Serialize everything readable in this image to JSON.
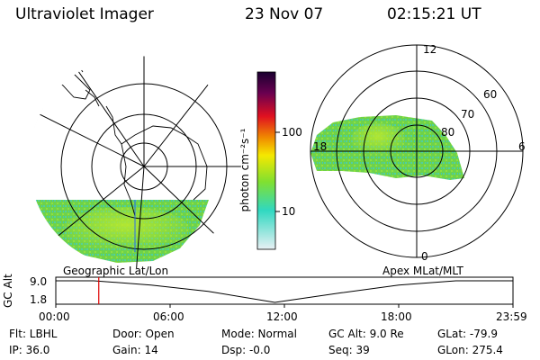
{
  "header": {
    "title": "Ultraviolet Imager",
    "date": "23 Nov 07",
    "time": "02:15:21 UT"
  },
  "left_panel": {
    "label": "Geographic Lat/Lon"
  },
  "right_panel": {
    "label": "Apex MLat/MLT",
    "mlt_labels": [
      "12",
      "18",
      "6",
      "0"
    ],
    "lat_labels": [
      "60",
      "70",
      "80"
    ]
  },
  "colorbar": {
    "unit": "photon cm⁻²s⁻¹",
    "ticks": [
      "100",
      "10"
    ],
    "scale": "log",
    "colors": [
      "#2a0040",
      "#d0102a",
      "#f08a00",
      "#f5e800",
      "#80e030",
      "#30d8c0",
      "#d8e8f0"
    ]
  },
  "timeline": {
    "axis_label": "GC Alt",
    "y_ticks": [
      "9.0",
      "1.8"
    ],
    "x_ticks": [
      "00:00",
      "06:00",
      "12:00",
      "18:00",
      "23:59"
    ],
    "current_time_hours": 2.2555,
    "marker_color": "#e00000",
    "altitude_profile": [
      {
        "t": 0,
        "alt": 9.0
      },
      {
        "t": 2,
        "alt": 9.0
      },
      {
        "t": 5,
        "alt": 7.6
      },
      {
        "t": 8,
        "alt": 5.5
      },
      {
        "t": 11.5,
        "alt": 1.8
      },
      {
        "t": 15,
        "alt": 5.0
      },
      {
        "t": 18,
        "alt": 7.6
      },
      {
        "t": 21,
        "alt": 9.0
      },
      {
        "t": 23.98,
        "alt": 9.0
      }
    ]
  },
  "info": {
    "flt": "Flt: LBHL",
    "door": "Door: Open",
    "mode": "Mode: Normal",
    "gc_alt": "GC Alt: 9.0 Re",
    "glat": "GLat: -79.9",
    "ip": "IP: 36.0",
    "gain": "Gain: 14",
    "dsp": "Dsp:   -0.0",
    "seq": "Seq: 39",
    "glon": "GLon: 275.4"
  }
}
